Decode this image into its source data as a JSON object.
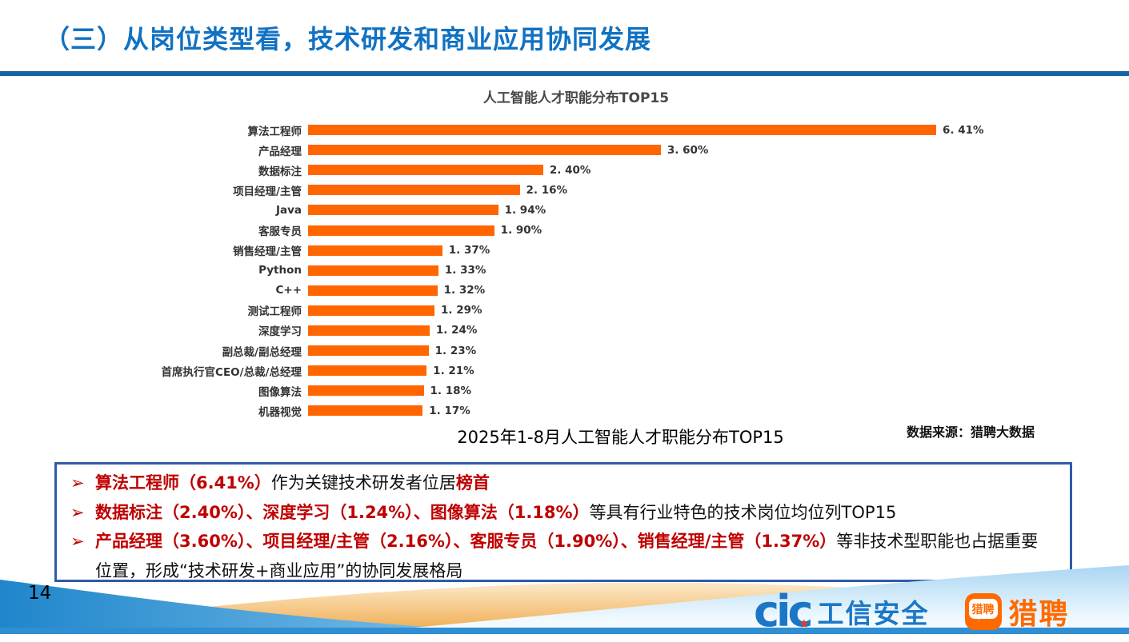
{
  "slide": {
    "title": "（三）从岗位类型看，技术研发和商业应用协同发展",
    "page_number": "14"
  },
  "chart_data": {
    "type": "bar",
    "orientation": "horizontal",
    "title": "人工智能人才职能分布TOP15",
    "categories": [
      "算法工程师",
      "产品经理",
      "数据标注",
      "项目经理/主管",
      "Java",
      "客服专员",
      "销售经理/主管",
      "Python",
      "C++",
      "测试工程师",
      "深度学习",
      "副总裁/副总经理",
      "首席执行官CEO/总裁/总经理",
      "图像算法",
      "机器视觉"
    ],
    "values": [
      6.41,
      3.6,
      2.4,
      2.16,
      1.94,
      1.9,
      1.37,
      1.33,
      1.32,
      1.29,
      1.24,
      1.23,
      1.21,
      1.18,
      1.17
    ],
    "value_labels": [
      "6. 41%",
      "3. 60%",
      "2. 40%",
      "2. 16%",
      "1. 94%",
      "1. 90%",
      "1. 37%",
      "1. 33%",
      "1. 32%",
      "1. 29%",
      "1. 24%",
      "1. 23%",
      "1. 21%",
      "1. 18%",
      "1. 17%"
    ],
    "xlabel": "",
    "ylabel": "",
    "xlim": [
      0,
      7
    ],
    "grid": false,
    "legend": "none",
    "bar_color": "#FF6600",
    "caption": "2025年1-8月人工智能人才职能分布TOP15",
    "source": "数据来源：猎聘大数据"
  },
  "summary_box": {
    "bullet_marker": "➢",
    "emphasis_color": "#C00000",
    "border_color": "#2F5BA7",
    "bullets": [
      {
        "segments": [
          {
            "text": "算法工程师（6.41%）",
            "emphasis": true
          },
          {
            "text": "作为关键技术研发者位居",
            "emphasis": false
          },
          {
            "text": "榜首",
            "emphasis": true
          }
        ]
      },
      {
        "segments": [
          {
            "text": "数据标注（2.40%）、深度学习（1.24%）、图像算法（1.18%）",
            "emphasis": true
          },
          {
            "text": "等具有行业特色的技术岗位均位列TOP15",
            "emphasis": false
          }
        ]
      },
      {
        "segments": [
          {
            "text": "产品经理（3.60%）、项目经理/主管（2.16%）、客服专员（1.90%）、销售经理/主管（1.37%）",
            "emphasis": true
          },
          {
            "text": "等非技术型职能也占据重要位置，形成“技术研发+商业应用”的协同发展格局",
            "emphasis": false
          }
        ]
      }
    ]
  },
  "footer": {
    "cic_logo_text": "cic",
    "cic_star": "★",
    "cic_brand_text": "工信安全",
    "liepin_badge_text": "猎聘",
    "liepin_brand_text": "猎聘"
  },
  "colors": {
    "title_blue": "#1172C2",
    "rule_blue": "#1565A5",
    "bar_orange": "#FF6600",
    "emphasis_red": "#C00000",
    "box_border_blue": "#2F5BA7",
    "cic_blue": "#1B77C6",
    "liepin_orange": "#FF6A00",
    "footer_strip_blue": "#2F8FD2"
  }
}
